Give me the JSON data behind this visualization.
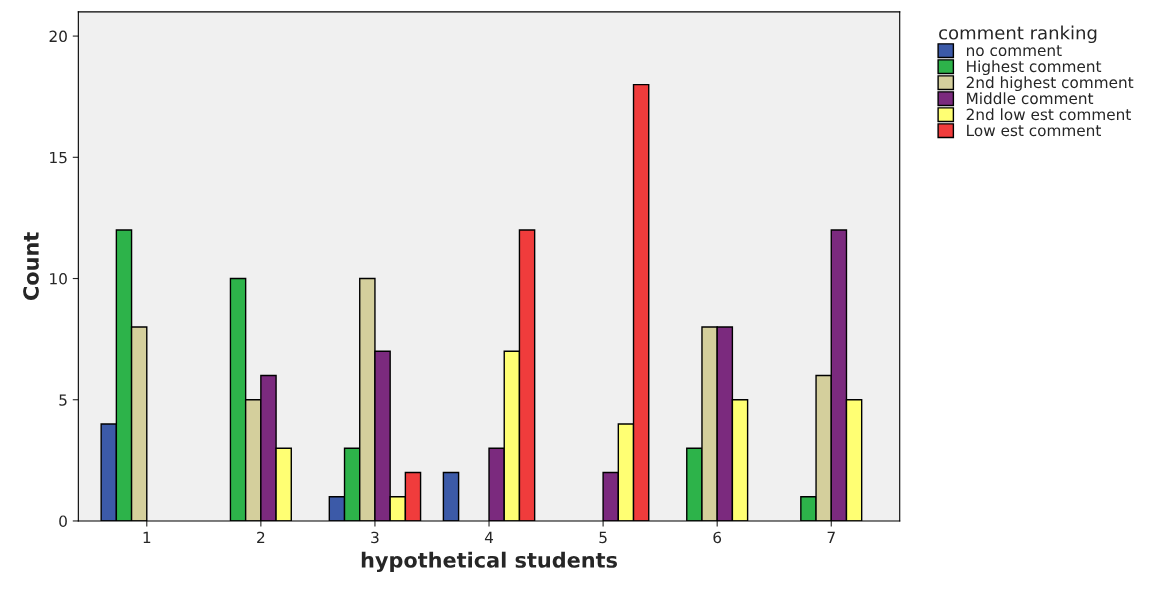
{
  "chart_data": {
    "type": "bar",
    "xlabel": "hypothetical students",
    "ylabel": "Count",
    "legend_title": "comment ranking",
    "categories": [
      "1",
      "2",
      "3",
      "4",
      "5",
      "6",
      "7"
    ],
    "series": [
      {
        "name": "no comment",
        "color": "#3c5aa8",
        "values": [
          4,
          0,
          1,
          2,
          0,
          0,
          0
        ]
      },
      {
        "name": "Highest comment",
        "color": "#2db34a",
        "values": [
          12,
          10,
          3,
          0,
          0,
          3,
          1
        ]
      },
      {
        "name": "2nd highest comment",
        "color": "#d4cf9c",
        "values": [
          8,
          5,
          10,
          0,
          0,
          8,
          6
        ]
      },
      {
        "name": "Middle comment",
        "color": "#7b2a7e",
        "values": [
          0,
          6,
          7,
          3,
          2,
          8,
          12
        ]
      },
      {
        "name": "2nd low est comment",
        "color": "#ffff73",
        "values": [
          0,
          3,
          1,
          7,
          4,
          5,
          5
        ]
      },
      {
        "name": "Low est comment",
        "color": "#f03c3c",
        "values": [
          0,
          0,
          2,
          12,
          18,
          0,
          0
        ]
      }
    ],
    "ylim": [
      0,
      21
    ],
    "yticks": [
      0,
      5,
      10,
      15,
      20
    ],
    "grid": false,
    "legend": "right"
  }
}
